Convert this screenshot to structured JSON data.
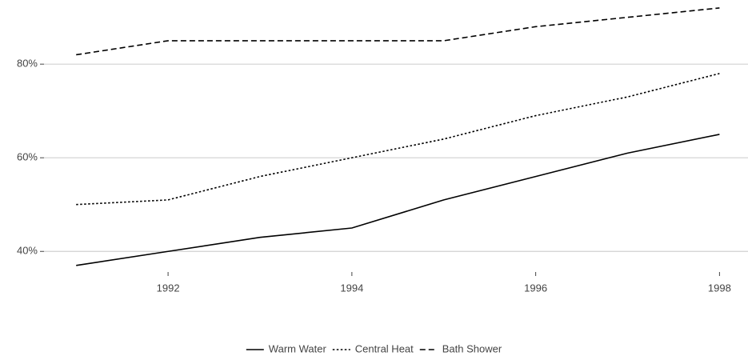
{
  "chart_data": {
    "type": "line",
    "x": [
      1991,
      1992,
      1993,
      1994,
      1995,
      1996,
      1997,
      1998
    ],
    "series": [
      {
        "name": "Warm Water",
        "color": "#000000",
        "line_style": "solid",
        "values": [
          37,
          40,
          43,
          45,
          51,
          56,
          61,
          65
        ]
      },
      {
        "name": "Central Heat",
        "color": "#000000",
        "line_style": "dotted",
        "values": [
          50,
          51,
          56,
          60,
          64,
          69,
          73,
          78
        ]
      },
      {
        "name": "Bath Shower",
        "color": "#000000",
        "line_style": "dashed",
        "values": [
          82,
          85,
          85,
          85,
          85,
          88,
          90,
          92
        ]
      }
    ],
    "xlim": [
      1990.65,
      1998.31
    ],
    "xticks": [
      1992,
      1994,
      1996,
      1998
    ],
    "ylim": [
      35.6,
      93.7
    ],
    "yticks": [
      {
        "value": 40,
        "label": "40%"
      },
      {
        "value": 60,
        "label": "60%"
      },
      {
        "value": 80,
        "label": "80%"
      }
    ],
    "grid": true,
    "legend": "bottom"
  }
}
